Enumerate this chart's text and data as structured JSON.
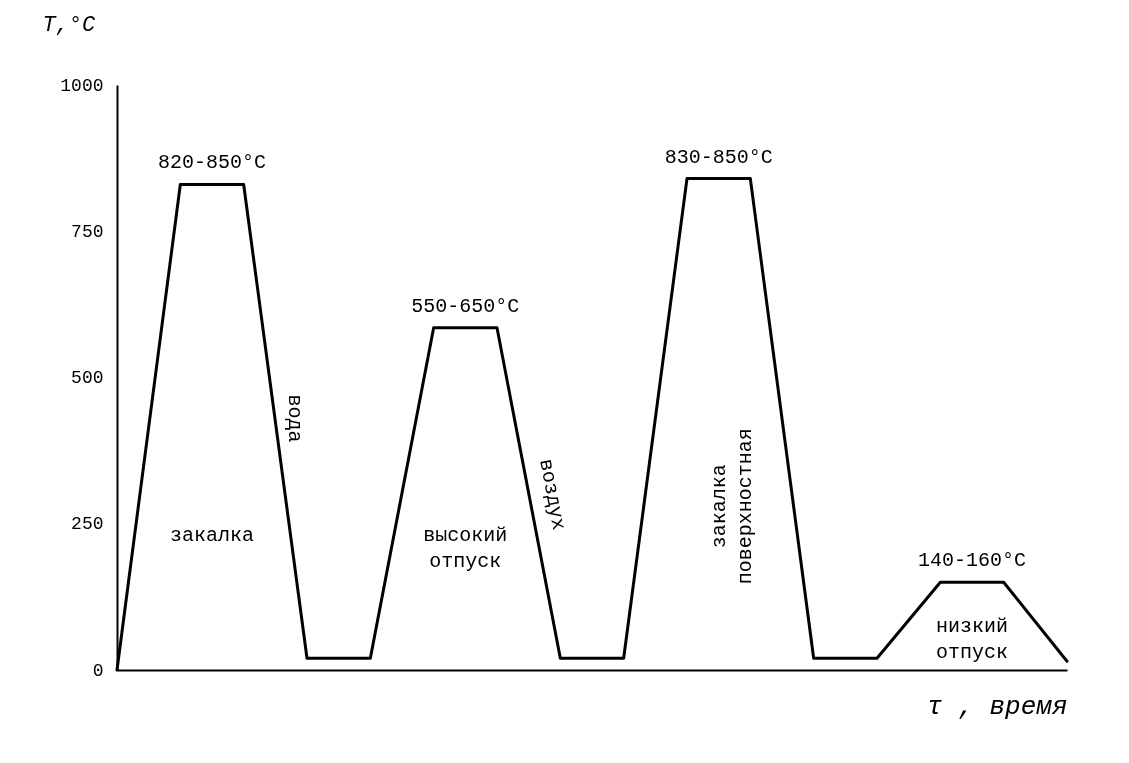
{
  "chart_data": {
    "type": "line",
    "xlabel": "τ , время",
    "ylabel": "T,°C",
    "categories": [
      null,
      null,
      null,
      null,
      null,
      null,
      null,
      null,
      null,
      null,
      null,
      null,
      null,
      null,
      null,
      null
    ],
    "series": [
      {
        "color": "#000000",
        "values": [
          0,
          830,
          830,
          20,
          20,
          585,
          585,
          20,
          20,
          840,
          840,
          20,
          20,
          150,
          150,
          15
        ]
      }
    ],
    "ylim": [
      0,
      1000
    ],
    "yticks": [
      0,
      250,
      500,
      750,
      1000
    ],
    "grid": false,
    "marker": "none",
    "line_style": "solid",
    "tick_labels": "y",
    "annotations": [
      "820-850°C",
      "вода",
      "550-650°C",
      "воздух",
      "830-850°C",
      "закалка",
      "высокий отпуск",
      "закалка поверхностная",
      "140-160°C",
      "низкий отпуск"
    ]
  }
}
